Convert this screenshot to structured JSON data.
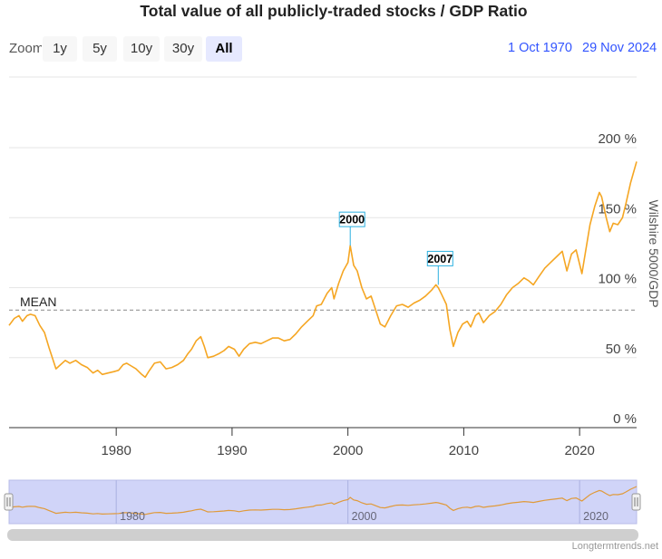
{
  "title": "Total value of all publicly-traded stocks / GDP Ratio",
  "zoom": {
    "label": "Zoom",
    "buttons": [
      "1y",
      "5y",
      "10y",
      "30y",
      "All"
    ],
    "active": "All"
  },
  "date_range": {
    "from": "1 Oct 1970",
    "to": "29 Nov 2024"
  },
  "credit": "Longtermtrends.net",
  "colors": {
    "line": "#f5a623",
    "accent": "#3355ff",
    "flag_border": "#2bb0e0",
    "navigator_fill": "#d0d4f8",
    "mean_line": "#888888"
  },
  "chart_data": {
    "type": "line",
    "title": "Total value of all publicly-traded stocks / GDP Ratio",
    "ylabel": "Wilshire 5000/GDP",
    "xlabel": "",
    "xlim": [
      1970.75,
      2024.92
    ],
    "ylim": [
      0,
      200
    ],
    "x_ticks": [
      1980,
      1990,
      2000,
      2010,
      2020
    ],
    "y_ticks": [
      0,
      50,
      100,
      150,
      200
    ],
    "y_tick_labels": [
      "0 %",
      "50 %",
      "100 %",
      "150 %",
      "200 %"
    ],
    "mean": {
      "label": "MEAN",
      "value": 84
    },
    "flags": [
      {
        "label": "2000",
        "x": 2000.2,
        "y": 130
      },
      {
        "label": "2007",
        "x": 2007.8,
        "y": 102
      }
    ],
    "navigator_labels": [
      "1980",
      "2000",
      "2020"
    ],
    "series": [
      {
        "name": "Wilshire 5000/GDP",
        "points": [
          [
            1970.75,
            73
          ],
          [
            1971.2,
            78
          ],
          [
            1971.6,
            80
          ],
          [
            1971.9,
            76
          ],
          [
            1972.3,
            80
          ],
          [
            1972.6,
            81
          ],
          [
            1973.0,
            80
          ],
          [
            1973.4,
            73
          ],
          [
            1973.8,
            68
          ],
          [
            1974.2,
            57
          ],
          [
            1974.6,
            47
          ],
          [
            1974.8,
            42
          ],
          [
            1975.2,
            45
          ],
          [
            1975.6,
            48
          ],
          [
            1976.0,
            46
          ],
          [
            1976.5,
            48
          ],
          [
            1977.0,
            45
          ],
          [
            1977.5,
            43
          ],
          [
            1978.0,
            39
          ],
          [
            1978.4,
            41
          ],
          [
            1978.8,
            38
          ],
          [
            1979.3,
            39
          ],
          [
            1979.8,
            40
          ],
          [
            1980.2,
            41
          ],
          [
            1980.6,
            45
          ],
          [
            1980.9,
            46
          ],
          [
            1981.3,
            44
          ],
          [
            1981.7,
            42
          ],
          [
            1982.2,
            38
          ],
          [
            1982.5,
            36
          ],
          [
            1982.8,
            40
          ],
          [
            1983.3,
            46
          ],
          [
            1983.8,
            47
          ],
          [
            1984.3,
            42
          ],
          [
            1984.8,
            43
          ],
          [
            1985.3,
            45
          ],
          [
            1985.8,
            48
          ],
          [
            1986.2,
            53
          ],
          [
            1986.5,
            56
          ],
          [
            1986.9,
            62
          ],
          [
            1987.3,
            65
          ],
          [
            1987.6,
            58
          ],
          [
            1987.9,
            50
          ],
          [
            1988.4,
            51
          ],
          [
            1988.9,
            53
          ],
          [
            1989.3,
            55
          ],
          [
            1989.7,
            58
          ],
          [
            1990.2,
            56
          ],
          [
            1990.6,
            51
          ],
          [
            1991.0,
            56
          ],
          [
            1991.5,
            60
          ],
          [
            1992.0,
            61
          ],
          [
            1992.5,
            60
          ],
          [
            1993.0,
            62
          ],
          [
            1993.5,
            64
          ],
          [
            1994.0,
            64
          ],
          [
            1994.5,
            62
          ],
          [
            1995.0,
            63
          ],
          [
            1995.5,
            67
          ],
          [
            1996.0,
            72
          ],
          [
            1996.5,
            76
          ],
          [
            1997.0,
            80
          ],
          [
            1997.3,
            87
          ],
          [
            1997.7,
            88
          ],
          [
            1998.2,
            96
          ],
          [
            1998.6,
            100
          ],
          [
            1998.8,
            92
          ],
          [
            1999.2,
            103
          ],
          [
            1999.6,
            112
          ],
          [
            2000.0,
            118
          ],
          [
            2000.2,
            130
          ],
          [
            2000.5,
            116
          ],
          [
            2000.8,
            112
          ],
          [
            2001.2,
            100
          ],
          [
            2001.6,
            92
          ],
          [
            2002.0,
            94
          ],
          [
            2002.4,
            84
          ],
          [
            2002.8,
            74
          ],
          [
            2003.2,
            72
          ],
          [
            2003.7,
            80
          ],
          [
            2004.2,
            87
          ],
          [
            2004.7,
            88
          ],
          [
            2005.2,
            86
          ],
          [
            2005.7,
            89
          ],
          [
            2006.2,
            91
          ],
          [
            2006.7,
            94
          ],
          [
            2007.2,
            98
          ],
          [
            2007.6,
            102
          ],
          [
            2007.8,
            100
          ],
          [
            2008.1,
            95
          ],
          [
            2008.5,
            88
          ],
          [
            2008.8,
            70
          ],
          [
            2009.1,
            58
          ],
          [
            2009.5,
            68
          ],
          [
            2009.9,
            74
          ],
          [
            2010.3,
            76
          ],
          [
            2010.6,
            72
          ],
          [
            2011.0,
            80
          ],
          [
            2011.3,
            82
          ],
          [
            2011.7,
            75
          ],
          [
            2012.2,
            80
          ],
          [
            2012.7,
            83
          ],
          [
            2013.2,
            88
          ],
          [
            2013.7,
            95
          ],
          [
            2014.2,
            100
          ],
          [
            2014.7,
            103
          ],
          [
            2015.2,
            107
          ],
          [
            2015.6,
            105
          ],
          [
            2016.0,
            102
          ],
          [
            2016.5,
            108
          ],
          [
            2017.0,
            114
          ],
          [
            2017.5,
            118
          ],
          [
            2018.0,
            122
          ],
          [
            2018.5,
            126
          ],
          [
            2018.9,
            112
          ],
          [
            2019.3,
            124
          ],
          [
            2019.7,
            127
          ],
          [
            2020.2,
            110
          ],
          [
            2020.5,
            125
          ],
          [
            2020.9,
            145
          ],
          [
            2021.3,
            158
          ],
          [
            2021.7,
            168
          ],
          [
            2021.9,
            165
          ],
          [
            2022.3,
            150
          ],
          [
            2022.6,
            140
          ],
          [
            2022.9,
            146
          ],
          [
            2023.3,
            145
          ],
          [
            2023.7,
            150
          ],
          [
            2024.0,
            160
          ],
          [
            2024.4,
            175
          ],
          [
            2024.92,
            190
          ]
        ]
      }
    ]
  }
}
